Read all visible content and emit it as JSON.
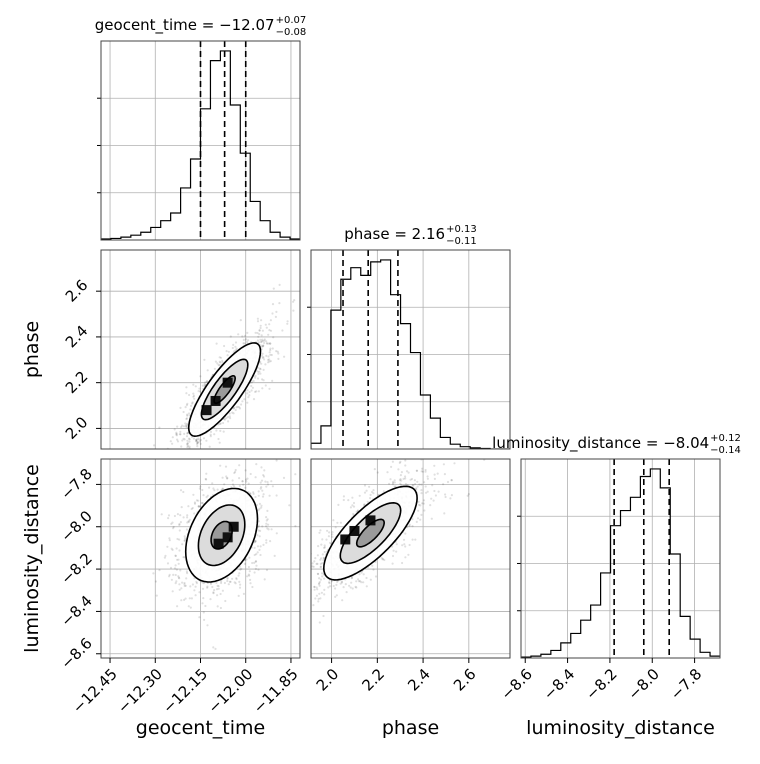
{
  "chart_data": {
    "type": "corner",
    "parameters": [
      {
        "name": "geocent_time",
        "label": "geocent_time",
        "title": {
          "prefix": "geocent_time = ",
          "value": "−12.07",
          "plus": "+0.07",
          "minus": "−0.08"
        },
        "range": [
          -12.48,
          -11.82
        ],
        "ticks": [
          -12.45,
          -12.3,
          -12.15,
          -12.0,
          -11.85
        ],
        "tick_labels": [
          "−12.45",
          "−12.30",
          "−12.15",
          "−12.00",
          "−11.85"
        ],
        "quantiles": [
          -12.15,
          -12.07,
          -12.0
        ],
        "hist_edges": [
          -12.48,
          -12.447,
          -12.414,
          -12.381,
          -12.348,
          -12.315,
          -12.282,
          -12.249,
          -12.216,
          -12.183,
          -12.15,
          -12.117,
          -12.084,
          -12.051,
          -12.018,
          -11.985,
          -11.952,
          -11.919,
          -11.886,
          -11.853,
          -11.82
        ],
        "hist_counts": [
          0.005,
          0.008,
          0.015,
          0.025,
          0.04,
          0.065,
          0.1,
          0.14,
          0.27,
          0.42,
          0.68,
          0.93,
          0.98,
          0.7,
          0.45,
          0.2,
          0.1,
          0.04,
          0.015,
          0.005
        ]
      },
      {
        "name": "phase",
        "label": "phase",
        "title": {
          "prefix": "phase = ",
          "value": "2.16",
          "plus": "+0.13",
          "minus": "−0.11"
        },
        "range": [
          1.91,
          2.78
        ],
        "ticks": [
          2.0,
          2.2,
          2.4,
          2.6
        ],
        "tick_labels": [
          "2.0",
          "2.2",
          "2.4",
          "2.6"
        ],
        "quantiles": [
          2.05,
          2.16,
          2.29
        ],
        "hist_edges": [
          1.91,
          1.9535,
          1.997,
          2.0405,
          2.084,
          2.1275,
          2.171,
          2.2145,
          2.258,
          2.3015,
          2.345,
          2.3885,
          2.432,
          2.4755,
          2.519,
          2.5625,
          2.606,
          2.6495,
          2.693,
          2.7365,
          2.78
        ],
        "hist_counts": [
          0.03,
          0.12,
          0.72,
          0.88,
          0.94,
          0.9,
          0.97,
          0.98,
          0.8,
          0.65,
          0.5,
          0.28,
          0.16,
          0.06,
          0.025,
          0.012,
          0.006,
          0.003,
          0.0,
          0.0
        ]
      },
      {
        "name": "luminosity_distance",
        "label": "luminosity_distance",
        "title": {
          "prefix": "luminosity_distance = ",
          "value": "−8.04",
          "plus": "+0.12",
          "minus": "−0.14"
        },
        "range": [
          -8.62,
          -7.68
        ],
        "ticks": [
          -8.6,
          -8.4,
          -8.2,
          -8.0,
          -7.8
        ],
        "tick_labels": [
          "−8.6",
          "−8.4",
          "−8.2",
          "−8.0",
          "−7.8"
        ],
        "quantiles": [
          -8.18,
          -8.04,
          -7.92
        ],
        "hist_edges": [
          -8.62,
          -8.573,
          -8.526,
          -8.479,
          -8.432,
          -8.385,
          -8.338,
          -8.291,
          -8.244,
          -8.197,
          -8.15,
          -8.103,
          -8.056,
          -8.009,
          -7.962,
          -7.915,
          -7.868,
          -7.821,
          -7.774,
          -7.727,
          -7.68
        ],
        "hist_counts": [
          0.005,
          0.01,
          0.02,
          0.04,
          0.08,
          0.13,
          0.2,
          0.28,
          0.45,
          0.7,
          0.78,
          0.85,
          0.96,
          1.0,
          0.9,
          0.55,
          0.22,
          0.1,
          0.03,
          0.01
        ]
      }
    ],
    "pairs": [
      {
        "x": "geocent_time",
        "y": "phase",
        "row": 1,
        "col": 0,
        "mean": [
          -12.07,
          2.17
        ],
        "sd": [
          0.07,
          0.12
        ],
        "rho": 0.82,
        "levels": [
          0.5,
          1.1,
          1.7
        ],
        "dense_cells": [
          [
            -12.1,
            2.12
          ],
          [
            -12.06,
            2.2
          ],
          [
            -12.13,
            2.08
          ]
        ]
      },
      {
        "x": "geocent_time",
        "y": "luminosity_distance",
        "row": 2,
        "col": 0,
        "mean": [
          -12.08,
          -8.04
        ],
        "sd": [
          0.07,
          0.13
        ],
        "rho": 0.35,
        "levels": [
          0.5,
          1.1,
          1.7
        ],
        "dense_cells": [
          [
            -12.06,
            -8.05
          ],
          [
            -12.04,
            -8.0
          ],
          [
            -12.09,
            -8.08
          ]
        ]
      },
      {
        "x": "phase",
        "y": "luminosity_distance",
        "row": 2,
        "col": 1,
        "mean": [
          2.17,
          -8.03
        ],
        "sd": [
          0.12,
          0.13
        ],
        "rho": 0.75,
        "levels": [
          0.5,
          1.1,
          1.7
        ],
        "dense_cells": [
          [
            2.17,
            -7.97
          ],
          [
            2.1,
            -8.02
          ],
          [
            2.06,
            -8.06
          ]
        ]
      }
    ]
  }
}
